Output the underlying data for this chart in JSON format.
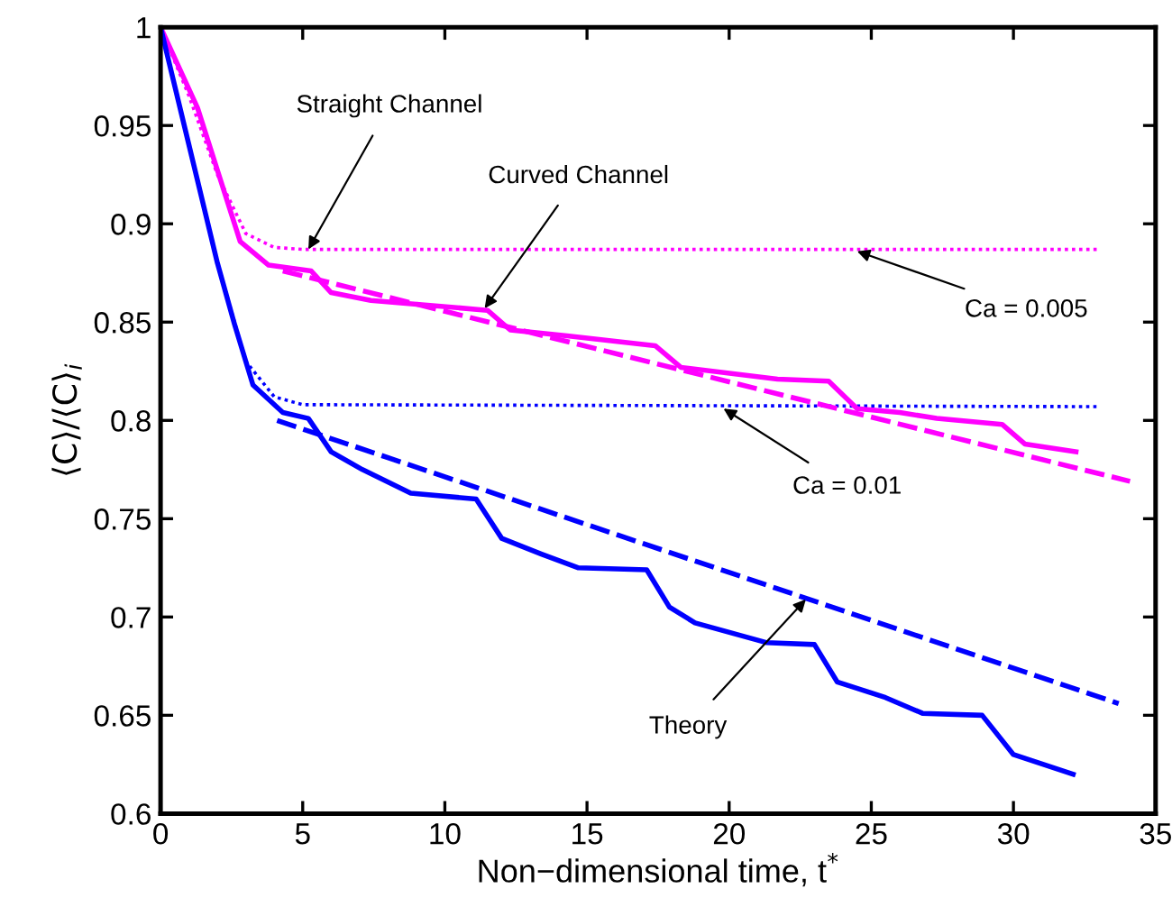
{
  "chart_data": {
    "type": "line",
    "xlabel": "Non−dimensional time, t$^{*}$",
    "ylabel": "⟨C⟩/⟨C⟩$_{i}$",
    "xlim": [
      0,
      35
    ],
    "ylim": [
      0.6,
      1
    ],
    "xticks": [
      0,
      5,
      10,
      15,
      20,
      25,
      30,
      35
    ],
    "yticks": [
      0.6,
      0.65,
      0.7,
      0.75,
      0.8,
      0.85,
      0.9,
      0.95,
      1
    ],
    "grid": false,
    "legend": false,
    "series": [
      {
        "color": "#ff00ff",
        "line_style": "dotted",
        "x": [
          0,
          1,
          2,
          3,
          4,
          5,
          33
        ],
        "values": [
          1,
          0.965,
          0.925,
          0.895,
          0.888,
          0.887,
          0.887
        ]
      },
      {
        "color": "#0000ff",
        "line_style": "dotted",
        "x": [
          0,
          1,
          2,
          3,
          4,
          5,
          33
        ],
        "values": [
          1,
          0.94,
          0.88,
          0.83,
          0.812,
          0.808,
          0.807
        ]
      },
      {
        "color": "#ff00ff",
        "line_style": "solid",
        "x": [
          0,
          1.3,
          2.8,
          3.8,
          5.3,
          6.0,
          7.4,
          11.5,
          12.3,
          14.3,
          17.4,
          18.3,
          21.7,
          23.5,
          24.5,
          26.0,
          27.3,
          29.6,
          30.4,
          32.2
        ],
        "values": [
          1,
          0.959,
          0.891,
          0.879,
          0.876,
          0.865,
          0.861,
          0.856,
          0.846,
          0.843,
          0.838,
          0.827,
          0.821,
          0.82,
          0.806,
          0.804,
          0.801,
          0.798,
          0.788,
          0.784
        ]
      },
      {
        "color": "#0000ff",
        "line_style": "solid",
        "x": [
          0,
          1,
          2,
          2.6,
          3.25,
          4.3,
          5.2,
          6.0,
          7.1,
          8.8,
          11.1,
          12.0,
          13.4,
          14.7,
          17.1,
          17.9,
          18.8,
          21.3,
          23.0,
          23.8,
          25.5,
          26.8,
          28.9,
          30.0,
          32.1
        ],
        "values": [
          1,
          0.94,
          0.88,
          0.849,
          0.818,
          0.804,
          0.801,
          0.784,
          0.775,
          0.763,
          0.76,
          0.74,
          0.732,
          0.725,
          0.724,
          0.705,
          0.697,
          0.687,
          0.686,
          0.667,
          0.659,
          0.651,
          0.65,
          0.63,
          0.62
        ]
      },
      {
        "color": "#ff00ff",
        "line_style": "dashed",
        "x": [
          4.3,
          34.1
        ],
        "values": [
          0.876,
          0.769
        ]
      },
      {
        "color": "#0000ff",
        "line_style": "dashed",
        "x": [
          4.1,
          33.7
        ],
        "values": [
          0.8,
          0.656
        ]
      }
    ],
    "annotations": [
      {
        "text": "Straight Channel",
        "x": 5.2,
        "y": 0.887
      },
      {
        "text": "Curved Channel",
        "x": 11.4,
        "y": 0.857
      },
      {
        "text": "Ca = 0.005",
        "x": 24.5,
        "y": 0.886
      },
      {
        "text": "Ca = 0.01",
        "x": 19.8,
        "y": 0.806
      },
      {
        "text": "Theory",
        "x": 22.7,
        "y": 0.709
      }
    ]
  }
}
